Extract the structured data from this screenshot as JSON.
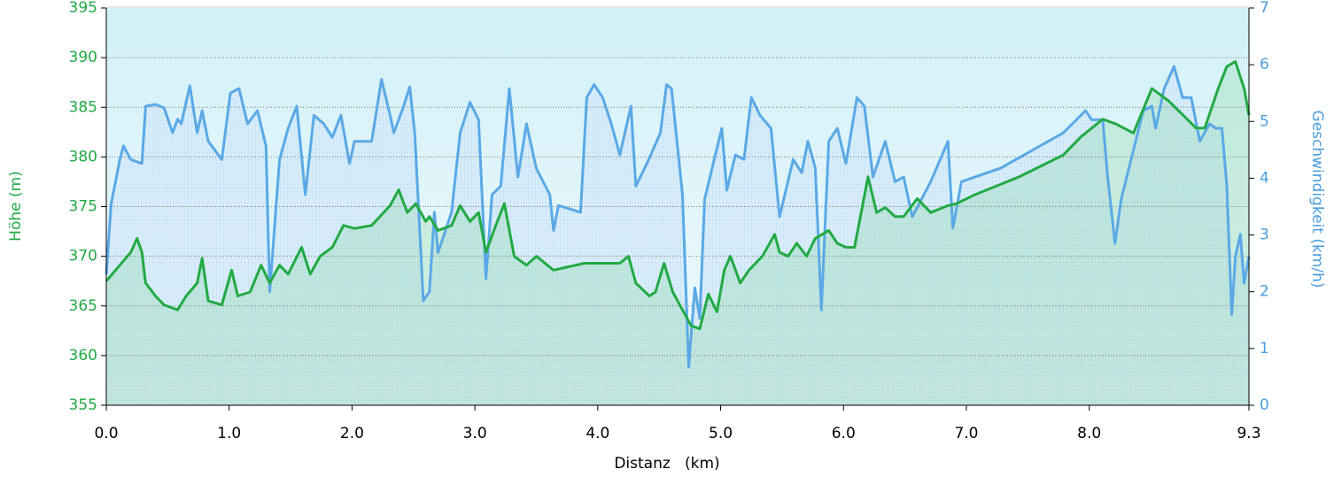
{
  "chart_data": {
    "type": "line",
    "xlabel": "Distanz   (km)",
    "ylabel": "Höhe (m)",
    "y2label": "Geschwindigkeit (km/h)",
    "xlim": [
      0,
      9.3
    ],
    "xticks": [
      {
        "value": 0,
        "label": "0.0"
      },
      {
        "value": 1,
        "label": "1.0"
      },
      {
        "value": 2,
        "label": "2.0"
      },
      {
        "value": 3,
        "label": "3.0"
      },
      {
        "value": 4,
        "label": "4.0"
      },
      {
        "value": 5,
        "label": "5.0"
      },
      {
        "value": 6,
        "label": "6.0"
      },
      {
        "value": 7,
        "label": "7.0"
      },
      {
        "value": 8,
        "label": "8.0"
      },
      9.3
    ],
    "ylim": [
      355,
      395
    ],
    "yticks": [
      355,
      360,
      365,
      370,
      375,
      380,
      385,
      390,
      395
    ],
    "y2lim": [
      0,
      7
    ],
    "y2ticks": [
      0,
      1,
      2,
      3,
      4,
      5,
      6,
      7
    ],
    "grid": true,
    "series": [
      {
        "color": "#22aa44",
        "x": [
          0,
          0.11,
          0.2,
          0.25,
          0.29,
          0.32,
          0.4,
          0.47,
          0.58,
          0.65,
          0.74,
          0.78,
          0.83,
          0.94,
          1.02,
          1.07,
          1.17,
          1.26,
          1.33,
          1.41,
          1.48,
          1.59,
          1.66,
          1.74,
          1.84,
          1.93,
          2.02,
          2.16,
          2.31,
          2.38,
          2.45,
          2.52,
          2.6,
          2.63,
          2.7,
          2.81,
          2.88,
          2.96,
          3.03,
          3.09,
          3.17,
          3.24,
          3.32,
          3.42,
          3.5,
          3.64,
          3.89,
          4.18,
          4.25,
          4.31,
          4.42,
          4.47,
          4.54,
          4.61,
          4.69,
          4.76,
          4.83,
          4.9,
          4.97,
          5.03,
          5.08,
          5.16,
          5.23,
          5.34,
          5.44,
          5.48,
          5.55,
          5.62,
          5.7,
          5.77,
          5.88,
          5.95,
          6.02,
          6.09,
          6.2,
          6.27,
          6.34,
          6.42,
          6.49,
          6.6,
          6.71,
          6.85,
          6.92,
          7.07,
          7.43,
          7.79,
          7.93,
          8.11,
          8.22,
          8.36,
          8.51,
          8.65,
          8.87,
          8.94,
          9.05,
          9.12,
          9.19,
          9.26,
          9.3
        ],
        "values": [
          367.5,
          369.1,
          370.4,
          371.8,
          370.4,
          367.3,
          366,
          365.1,
          364.6,
          366,
          367.3,
          369.8,
          365.5,
          365.1,
          368.6,
          366,
          366.4,
          369.1,
          367.3,
          369.1,
          368.2,
          370.9,
          368.2,
          370,
          370.9,
          373.1,
          372.8,
          373.1,
          375.1,
          376.7,
          374.4,
          375.3,
          373.5,
          374,
          372.6,
          373.1,
          375.1,
          373.5,
          374.4,
          370.4,
          373.1,
          375.3,
          370,
          369.1,
          370,
          368.6,
          369.3,
          369.3,
          370,
          367.3,
          366,
          366.4,
          369.3,
          366.4,
          364.6,
          363,
          362.7,
          366.2,
          364.4,
          368.6,
          370,
          367.3,
          368.6,
          370,
          372.2,
          370.4,
          370,
          371.3,
          370,
          371.8,
          372.6,
          371.3,
          370.9,
          370.9,
          378,
          374.4,
          374.9,
          374,
          374,
          375.8,
          374.4,
          375.1,
          375.3,
          376.2,
          378,
          380.2,
          382,
          383.8,
          383.3,
          382.4,
          386.9,
          385.6,
          382.9,
          382.9,
          386.9,
          389.1,
          389.6,
          386.9,
          384.2
        ]
      },
      {
        "color": "#5aa9e6",
        "axis": "y2",
        "x": [
          0,
          0.04,
          0.11,
          0.14,
          0.2,
          0.29,
          0.32,
          0.4,
          0.47,
          0.54,
          0.58,
          0.61,
          0.68,
          0.74,
          0.78,
          0.83,
          0.94,
          1.01,
          1.08,
          1.15,
          1.23,
          1.3,
          1.33,
          1.41,
          1.48,
          1.55,
          1.62,
          1.69,
          1.77,
          1.84,
          1.91,
          1.98,
          2.02,
          2.16,
          2.24,
          2.31,
          2.34,
          2.42,
          2.47,
          2.51,
          2.58,
          2.63,
          2.67,
          2.7,
          2.81,
          2.88,
          2.96,
          3.03,
          3.09,
          3.14,
          3.21,
          3.28,
          3.35,
          3.42,
          3.5,
          3.61,
          3.64,
          3.68,
          3.86,
          3.91,
          3.97,
          4.04,
          4.11,
          4.18,
          4.27,
          4.31,
          4.4,
          4.51,
          4.56,
          4.6,
          4.69,
          4.74,
          4.79,
          4.83,
          4.87,
          4.94,
          5.01,
          5.05,
          5.12,
          5.19,
          5.25,
          5.32,
          5.41,
          5.48,
          5.59,
          5.66,
          5.71,
          5.77,
          5.82,
          5.88,
          5.95,
          6.02,
          6.11,
          6.17,
          6.24,
          6.34,
          6.42,
          6.49,
          6.56,
          6.71,
          6.85,
          6.89,
          6.96,
          7.28,
          7.79,
          7.97,
          8.02,
          8.11,
          8.15,
          8.21,
          8.26,
          8.44,
          8.51,
          8.54,
          8.61,
          8.69,
          8.76,
          8.83,
          8.9,
          8.98,
          9.03,
          9.08,
          9.12,
          9.16,
          9.19,
          9.23,
          9.26,
          9.3
        ],
        "values": [
          2.31,
          3.55,
          4.33,
          4.57,
          4.33,
          4.26,
          5.27,
          5.3,
          5.24,
          4.8,
          5.04,
          4.96,
          5.63,
          4.8,
          5.19,
          4.65,
          4.33,
          5.5,
          5.58,
          4.96,
          5.19,
          4.57,
          2,
          4.33,
          4.88,
          5.27,
          3.71,
          5.11,
          4.96,
          4.72,
          5.11,
          4.26,
          4.65,
          4.65,
          5.74,
          5.11,
          4.8,
          5.27,
          5.61,
          4.8,
          1.84,
          2,
          3.4,
          2.69,
          3.4,
          4.8,
          5.34,
          5.03,
          2.23,
          3.71,
          3.86,
          5.58,
          4.02,
          4.96,
          4.17,
          3.71,
          3.08,
          3.52,
          3.4,
          5.42,
          5.65,
          5.42,
          4.96,
          4.41,
          5.27,
          3.86,
          4.26,
          4.8,
          5.65,
          5.58,
          3.71,
          0.67,
          2.07,
          1.53,
          3.63,
          4.26,
          4.88,
          3.79,
          4.41,
          4.33,
          5.42,
          5.11,
          4.88,
          3.32,
          4.33,
          4.1,
          4.65,
          4.18,
          1.68,
          4.65,
          4.88,
          4.26,
          5.42,
          5.27,
          4.02,
          4.65,
          3.94,
          4.02,
          3.32,
          3.94,
          4.65,
          3.12,
          3.94,
          4.18,
          4.8,
          5.19,
          5.03,
          5.03,
          4.02,
          2.85,
          3.63,
          5.19,
          5.27,
          4.88,
          5.58,
          5.97,
          5.42,
          5.42,
          4.65,
          4.96,
          4.88,
          4.88,
          3.86,
          1.6,
          2.62,
          3.01,
          2.15,
          2.62
        ]
      }
    ]
  }
}
